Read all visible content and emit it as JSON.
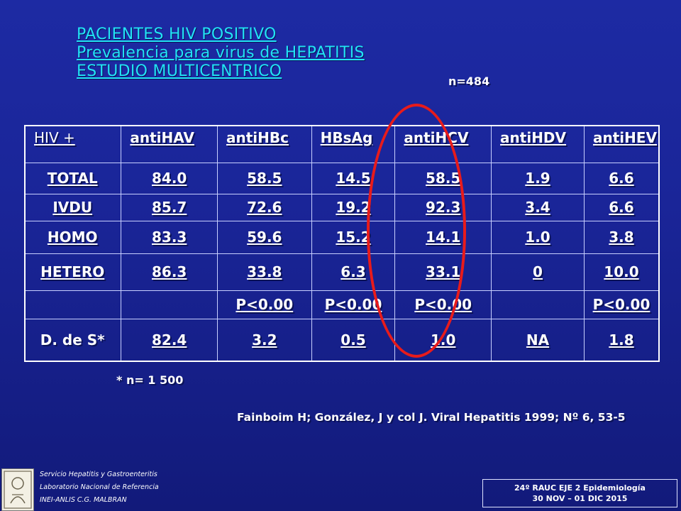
{
  "title": {
    "line1": "PACIENTES HIV POSITIVO",
    "line2": "Prevalencia para virus de HEPATITIS",
    "line3": "ESTUDIO MULTICENTRICO"
  },
  "sample_size": "n=484",
  "table": {
    "headers": [
      "HIV +",
      "antiHAV",
      "antiHBc",
      "HBsAg",
      "antiHCV",
      "antiHDV",
      "antiHEV"
    ],
    "rows": [
      [
        "TOTAL",
        "84.0",
        "58.5",
        "14.5",
        "58.5",
        "1.9",
        "6.6"
      ],
      [
        "IVDU",
        "85.7",
        "72.6",
        "19.2",
        "92.3",
        "3.4",
        "6.6"
      ],
      [
        "HOMO",
        "83.3",
        "59.6",
        "15.2",
        "14.1",
        "1.0",
        "3.8"
      ],
      [
        "HETERO",
        "86.3",
        "33.8",
        "6.3",
        "33.1",
        "0",
        "10.0"
      ],
      [
        "",
        "",
        "P<0.00",
        "P<0.00",
        "P<0.00",
        "",
        "P<0.00"
      ],
      [
        "D. de S*",
        "82.4",
        "3.2",
        "0.5",
        "1.0",
        "NA",
        "1.8"
      ]
    ]
  },
  "highlight_color": "#e81b1b",
  "footnote": "* n= 1 500",
  "citation": "Fainboim H; González, J y col J. Viral Hepatitis 1999; Nº 6, 53-5",
  "institution": {
    "line1": "Servicio Hepatitis y Gastroenteritis",
    "line2": "Laboratorio Nacional de Referencia",
    "line3": "INEI-ANLIS C.G. MALBRAN"
  },
  "congress": {
    "line1": "24º RAUC EJE 2 Epidemiología",
    "line2": "30 NOV – 01 DIC 2015"
  }
}
